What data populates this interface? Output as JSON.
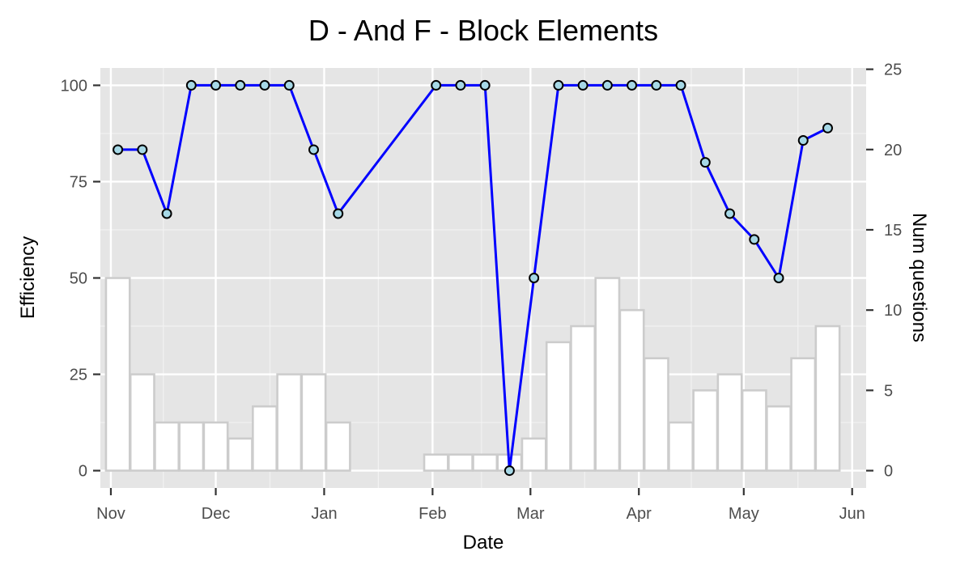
{
  "chart_data": {
    "type": "line",
    "title": "D - And F - Block Elements",
    "xlabel": "Date",
    "ylabel": "Efficiency",
    "y2label": "Num questions",
    "x_range": [
      "2018-10-29",
      "2019-06-05"
    ],
    "ylim": [
      -4.5,
      104.5
    ],
    "y2lim": [
      -1.08,
      25.08
    ],
    "grid": true,
    "x_ticks": [
      {
        "date": "2018-11-01",
        "label": "Nov"
      },
      {
        "date": "2018-12-01",
        "label": "Dec"
      },
      {
        "date": "2019-01-01",
        "label": "Jan"
      },
      {
        "date": "2019-02-01",
        "label": "Feb"
      },
      {
        "date": "2019-03-01",
        "label": "Mar"
      },
      {
        "date": "2019-04-01",
        "label": "Apr"
      },
      {
        "date": "2019-05-01",
        "label": "May"
      },
      {
        "date": "2019-06-01",
        "label": "Jun"
      }
    ],
    "y_ticks": [
      0,
      25,
      50,
      75,
      100
    ],
    "y2_ticks": [
      0,
      5,
      10,
      15,
      20,
      25
    ],
    "series": [
      {
        "type": "line",
        "axis": "left",
        "color": "#0000ff",
        "marker_fill": "#a6d8e6",
        "points": [
          {
            "x": "2018-11-03",
            "y": 83.3
          },
          {
            "x": "2018-11-10",
            "y": 83.3
          },
          {
            "x": "2018-11-17",
            "y": 66.7
          },
          {
            "x": "2018-11-24",
            "y": 100
          },
          {
            "x": "2018-12-01",
            "y": 100
          },
          {
            "x": "2018-12-08",
            "y": 100
          },
          {
            "x": "2018-12-15",
            "y": 100
          },
          {
            "x": "2018-12-22",
            "y": 100
          },
          {
            "x": "2018-12-29",
            "y": 83.3
          },
          {
            "x": "2019-01-05",
            "y": 66.7
          },
          {
            "x": "2019-02-02",
            "y": 100
          },
          {
            "x": "2019-02-09",
            "y": 100
          },
          {
            "x": "2019-02-16",
            "y": 100
          },
          {
            "x": "2019-02-23",
            "y": 0
          },
          {
            "x": "2019-03-02",
            "y": 50
          },
          {
            "x": "2019-03-09",
            "y": 100
          },
          {
            "x": "2019-03-16",
            "y": 100
          },
          {
            "x": "2019-03-23",
            "y": 100
          },
          {
            "x": "2019-03-30",
            "y": 100
          },
          {
            "x": "2019-04-06",
            "y": 100
          },
          {
            "x": "2019-04-13",
            "y": 100
          },
          {
            "x": "2019-04-20",
            "y": 80
          },
          {
            "x": "2019-04-27",
            "y": 66.7
          },
          {
            "x": "2019-05-04",
            "y": 60
          },
          {
            "x": "2019-05-11",
            "y": 50
          },
          {
            "x": "2019-05-18",
            "y": 85.7
          },
          {
            "x": "2019-05-25",
            "y": 88.9
          }
        ]
      },
      {
        "type": "bar",
        "axis": "right",
        "fill": "#ffffff",
        "stroke": "#cccccc",
        "points": [
          {
            "x": "2018-11-03",
            "y": 12
          },
          {
            "x": "2018-11-10",
            "y": 6
          },
          {
            "x": "2018-11-17",
            "y": 3
          },
          {
            "x": "2018-11-24",
            "y": 3
          },
          {
            "x": "2018-12-01",
            "y": 3
          },
          {
            "x": "2018-12-08",
            "y": 2
          },
          {
            "x": "2018-12-15",
            "y": 4
          },
          {
            "x": "2018-12-22",
            "y": 6
          },
          {
            "x": "2018-12-29",
            "y": 6
          },
          {
            "x": "2019-01-05",
            "y": 3
          },
          {
            "x": "2019-02-02",
            "y": 1
          },
          {
            "x": "2019-02-09",
            "y": 1
          },
          {
            "x": "2019-02-16",
            "y": 1
          },
          {
            "x": "2019-02-23",
            "y": 1
          },
          {
            "x": "2019-03-02",
            "y": 2
          },
          {
            "x": "2019-03-09",
            "y": 8
          },
          {
            "x": "2019-03-16",
            "y": 9
          },
          {
            "x": "2019-03-23",
            "y": 12
          },
          {
            "x": "2019-03-30",
            "y": 10
          },
          {
            "x": "2019-04-06",
            "y": 7
          },
          {
            "x": "2019-04-13",
            "y": 3
          },
          {
            "x": "2019-04-20",
            "y": 5
          },
          {
            "x": "2019-04-27",
            "y": 6
          },
          {
            "x": "2019-05-04",
            "y": 5
          },
          {
            "x": "2019-05-11",
            "y": 4
          },
          {
            "x": "2019-05-18",
            "y": 7
          },
          {
            "x": "2019-05-25",
            "y": 9
          }
        ]
      }
    ]
  }
}
